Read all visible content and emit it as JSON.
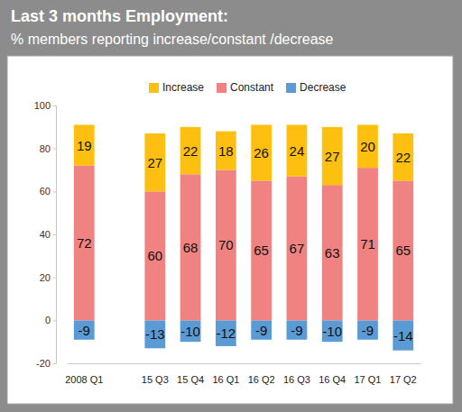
{
  "chart_data": {
    "type": "bar",
    "title": "Last 3 months Employment:",
    "subtitle": "% members reporting increase/constant /decrease",
    "categories": [
      "2008 Q1",
      null,
      "15 Q3",
      "15 Q4",
      "16 Q1",
      "16 Q2",
      "16 Q3",
      "16 Q4",
      "17 Q1",
      "17 Q2"
    ],
    "series": [
      {
        "name": "Increase",
        "color": "#fdc010",
        "values": [
          19,
          null,
          27,
          22,
          18,
          26,
          24,
          27,
          20,
          22
        ]
      },
      {
        "name": "Constant",
        "color": "#f08282",
        "values": [
          72,
          null,
          60,
          68,
          70,
          65,
          67,
          63,
          71,
          65
        ]
      },
      {
        "name": "Decrease",
        "color": "#5b9bd5",
        "values": [
          -9,
          null,
          -13,
          -10,
          -12,
          -9,
          -9,
          -10,
          -9,
          -14
        ]
      }
    ],
    "ylim": [
      -20,
      100
    ],
    "yticks": [
      -20,
      0,
      20,
      40,
      60,
      80,
      100
    ],
    "stacked": true,
    "data_labels": true,
    "grid": false,
    "legend": "top"
  }
}
